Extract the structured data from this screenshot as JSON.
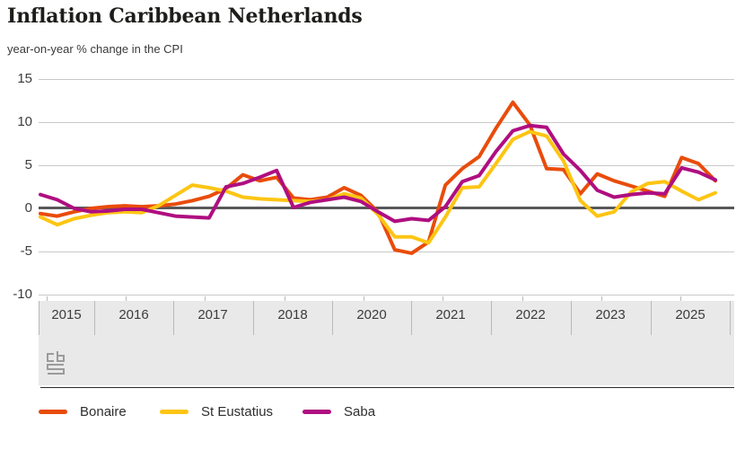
{
  "header": {
    "title": "Inflation Caribbean Netherlands",
    "subtitle": "year-on-year % change in the CPI"
  },
  "chart_data": {
    "type": "line",
    "title": "Inflation Caribbean Netherlands",
    "ylabel": "year-on-year % change in the CPI",
    "x_unit": "quarter",
    "x_start": "2015 Q1",
    "x_end": "2025 Q1",
    "x_axis_labels": [
      "2015",
      "2016",
      "2017",
      "2018",
      "2020",
      "2021",
      "2022",
      "2023",
      "2025"
    ],
    "y_axis_ticks": [
      "15",
      "10",
      "5",
      "0",
      "-5",
      "-10"
    ],
    "ylim": [
      -10,
      15
    ],
    "grid": true,
    "zero_baseline": true,
    "legend_position": "bottom",
    "series": [
      {
        "name": "Bonaire",
        "color": "#e94c0a",
        "values": [
          -0.6,
          -0.9,
          -0.4,
          0.0,
          0.2,
          0.3,
          0.2,
          0.3,
          0.5,
          0.9,
          1.4,
          2.3,
          3.9,
          3.2,
          3.6,
          1.2,
          1.0,
          1.3,
          2.4,
          1.5,
          -0.4,
          -4.8,
          -5.2,
          -3.9,
          2.7,
          4.6,
          6.0,
          9.3,
          12.3,
          9.7,
          4.6,
          4.5,
          1.7,
          4.0,
          3.2,
          2.6,
          2.0,
          1.4,
          5.9,
          5.2,
          3.2
        ]
      },
      {
        "name": "St Eustatius",
        "color": "#fdc513",
        "values": [
          -1.0,
          -1.9,
          -1.2,
          -0.8,
          -0.5,
          -0.4,
          -0.5,
          0.3,
          1.5,
          2.7,
          2.4,
          2.0,
          1.3,
          1.1,
          1.0,
          0.9,
          0.8,
          1.0,
          1.7,
          1.2,
          -0.7,
          -3.3,
          -3.3,
          -4.0,
          -1.0,
          2.4,
          2.5,
          5.2,
          8.0,
          8.9,
          8.4,
          5.5,
          0.9,
          -0.9,
          -0.4,
          1.9,
          2.9,
          3.1,
          2.0,
          1.0,
          1.8
        ]
      },
      {
        "name": "Saba",
        "color": "#af0e80",
        "values": [
          1.6,
          1.0,
          0.0,
          -0.4,
          -0.3,
          -0.1,
          -0.1,
          -0.5,
          -0.9,
          -1.0,
          -1.1,
          2.5,
          2.9,
          3.6,
          4.4,
          0.1,
          0.7,
          1.0,
          1.3,
          0.8,
          -0.4,
          -1.5,
          -1.2,
          -1.4,
          0.2,
          3.1,
          3.8,
          6.6,
          9.0,
          9.6,
          9.4,
          6.3,
          4.4,
          2.1,
          1.3,
          1.6,
          1.8,
          1.7,
          4.7,
          4.2,
          3.3
        ]
      }
    ],
    "axis_colors": {
      "grid": "#c9c9c9",
      "zero_line": "#58585a",
      "axis_band": "#e9e9e9",
      "tick": "#b9b9b9",
      "label_text": "#3c3c3c"
    }
  },
  "branding": {
    "logo": "cbs-logo"
  }
}
